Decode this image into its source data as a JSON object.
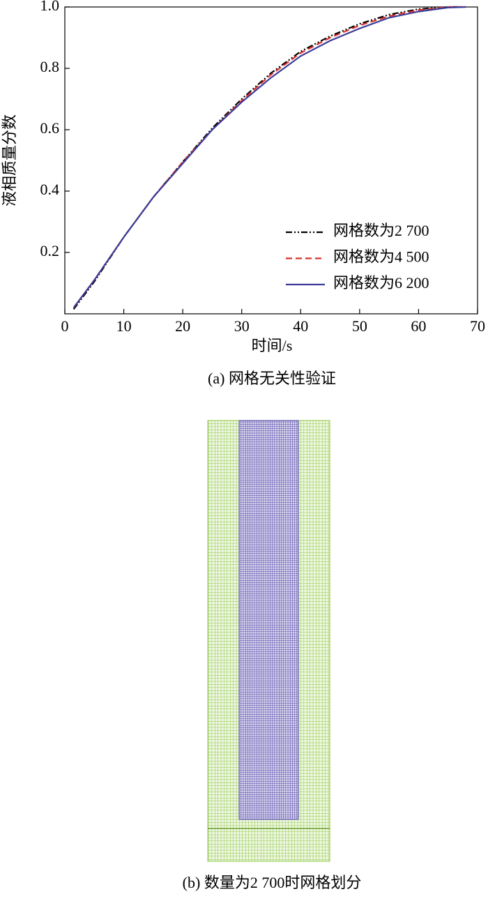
{
  "chart_data": {
    "type": "line",
    "caption": "(a) 网格无关性验证",
    "x_label": "时间/s",
    "y_label": "液相质量分数",
    "x": [
      1.5,
      5,
      10,
      15,
      20,
      25,
      30,
      35,
      40,
      45,
      50,
      55,
      60,
      65,
      68
    ],
    "series": [
      {
        "name": "网格数为2 700",
        "color": "#000000",
        "line_style": "dashdot",
        "values": [
          0.015,
          0.105,
          0.25,
          0.38,
          0.495,
          0.605,
          0.7,
          0.785,
          0.855,
          0.905,
          0.945,
          0.975,
          0.993,
          1.0,
          1.0
        ]
      },
      {
        "name": "网格数为4 500",
        "color": "#d9302a",
        "line_style": "dashed",
        "values": [
          0.02,
          0.11,
          0.25,
          0.38,
          0.495,
          0.6,
          0.695,
          0.78,
          0.85,
          0.9,
          0.94,
          0.97,
          0.99,
          1.0,
          1.0
        ]
      },
      {
        "name": "网格数为6 200",
        "color": "#3b3b98",
        "line_style": "solid",
        "values": [
          0.02,
          0.11,
          0.25,
          0.38,
          0.49,
          0.6,
          0.69,
          0.77,
          0.84,
          0.89,
          0.93,
          0.965,
          0.985,
          0.998,
          1.0
        ]
      }
    ],
    "xlim": [
      0,
      70
    ],
    "xticks": [
      0,
      10,
      20,
      30,
      40,
      50,
      60,
      70
    ],
    "ylim": [
      0,
      1
    ],
    "yticks": [
      0.2,
      0.4,
      0.6,
      0.8,
      {
        "value": 1,
        "label": "1.0"
      }
    ],
    "legend": "lower right"
  },
  "mesh": {
    "caption": "(b) 数量为2 700时网格划分"
  }
}
